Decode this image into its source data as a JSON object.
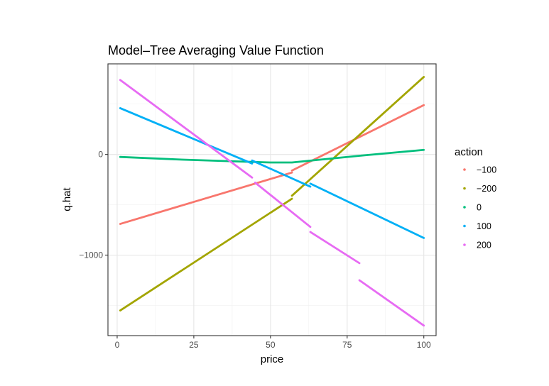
{
  "chart_data": {
    "type": "line",
    "title": "Model–Tree Averaging Value Function",
    "xlabel": "price",
    "ylabel": "q.hat",
    "xlim": [
      -3,
      104
    ],
    "ylim": [
      -1800,
      900
    ],
    "x_ticks": [
      0,
      25,
      50,
      75,
      100
    ],
    "x_tick_labels": [
      "0",
      "25",
      "50",
      "75",
      "100"
    ],
    "y_ticks": [
      -1000,
      0
    ],
    "y_tick_labels": [
      "−1000",
      "0"
    ],
    "grid": true,
    "legend": {
      "title": "action",
      "position": "right",
      "items": [
        "−100",
        "−200",
        "0",
        "100",
        "200"
      ]
    },
    "series": [
      {
        "name": "−100",
        "color": "#F8766D",
        "segments": [
          [
            [
              1,
              -690
            ],
            [
              57,
              -180
            ]
          ],
          [
            [
              57,
              -160
            ],
            [
              100,
              490
            ]
          ]
        ]
      },
      {
        "name": "−200",
        "color": "#A3A500",
        "segments": [
          [
            [
              1,
              -1550
            ],
            [
              57,
              -440
            ]
          ],
          [
            [
              57,
              -410
            ],
            [
              100,
              770
            ]
          ]
        ]
      },
      {
        "name": "0",
        "color": "#00BF7D",
        "segments": [
          [
            [
              1,
              -25
            ],
            [
              20,
              -50
            ],
            [
              40,
              -70
            ],
            [
              50,
              -80
            ],
            [
              57,
              -80
            ],
            [
              65,
              -55
            ],
            [
              80,
              -10
            ],
            [
              100,
              45
            ]
          ]
        ]
      },
      {
        "name": "100",
        "color": "#00B0F6",
        "segments": [
          [
            [
              1,
              460
            ],
            [
              44,
              -90
            ]
          ],
          [
            [
              44,
              -60
            ],
            [
              63,
              -320
            ]
          ],
          [
            [
              63,
              -290
            ],
            [
              100,
              -830
            ]
          ]
        ]
      },
      {
        "name": "200",
        "color": "#E76BF3",
        "segments": [
          [
            [
              1,
              740
            ],
            [
              44,
              -230
            ]
          ],
          [
            [
              45,
              -280
            ],
            [
              63,
              -720
            ]
          ],
          [
            [
              63,
              -770
            ],
            [
              79,
              -1080
            ]
          ],
          [
            [
              79,
              -1250
            ],
            [
              100,
              -1700
            ]
          ]
        ]
      }
    ]
  }
}
